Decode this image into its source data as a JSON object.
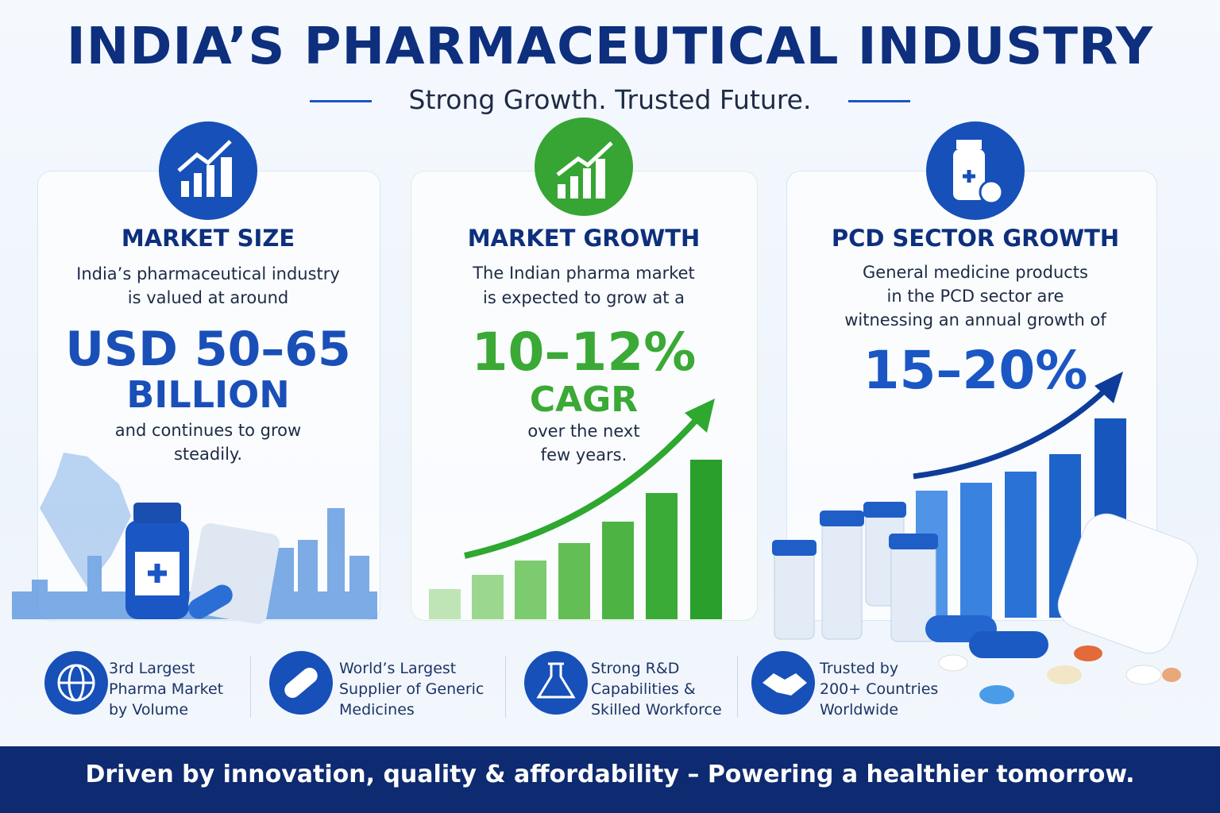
{
  "header": {
    "title": "INDIA’S PHARMACEUTICAL INDUSTRY",
    "subtitle": "Strong Growth. Trusted Future."
  },
  "cards": [
    {
      "heading": "MARKET SIZE",
      "lines": [
        "India’s pharmaceutical industry",
        "is valued at around"
      ],
      "highlight": [
        "USD 50–65",
        "BILLION"
      ],
      "note": [
        "and continues to grow",
        "steadily."
      ]
    },
    {
      "heading": "MARKET GROWTH",
      "lines": [
        "The Indian pharma market",
        "is expected to grow at a"
      ],
      "highlight": [
        "10–12%",
        "CAGR"
      ],
      "note": [
        "over the next",
        "few years."
      ]
    },
    {
      "heading": "PCD SECTOR GROWTH",
      "lines": [
        "General medicine products",
        "in the PCD sector are",
        "witnessing an annual growth of"
      ],
      "highlight": [
        "15–20%"
      ],
      "note": []
    }
  ],
  "features": [
    [
      "3rd Largest",
      "Pharma Market",
      "by Volume"
    ],
    [
      "World’s Largest",
      "Supplier of Generic",
      "Medicines"
    ],
    [
      "Strong R&D",
      "Capabilities &",
      "Skilled Workforce"
    ],
    [
      "Trusted by",
      "200+ Countries",
      "Worldwide"
    ]
  ],
  "footer": "Driven by innovation, quality & affordability – Powering a healthier tomorrow."
}
